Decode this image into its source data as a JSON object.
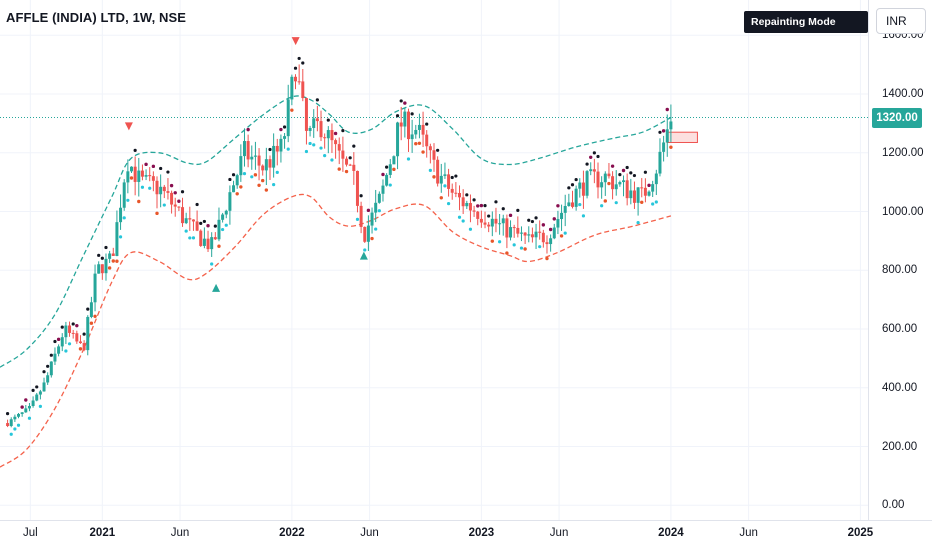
{
  "header": {
    "title": "AFFLE (INDIA) LTD, 1W, NSE",
    "badge": "Repainting Mode Enabled",
    "currency": "INR"
  },
  "price_axis": {
    "ticks": [
      "1600.00",
      "1400.00",
      "1200.00",
      "1000.00",
      "800.00",
      "600.00",
      "400.00",
      "200.00",
      "0.00"
    ],
    "current_price_label": "1320.00"
  },
  "time_axis": {
    "ticks": [
      {
        "label": "Jul",
        "year": false
      },
      {
        "label": "2021",
        "year": true
      },
      {
        "label": "Jun",
        "year": false
      },
      {
        "label": "2022",
        "year": true
      },
      {
        "label": "Jun",
        "year": false
      },
      {
        "label": "2023",
        "year": true
      },
      {
        "label": "Jun",
        "year": false
      },
      {
        "label": "2024",
        "year": true
      },
      {
        "label": "Jun",
        "year": false
      },
      {
        "label": "2025",
        "year": true
      }
    ]
  },
  "colors": {
    "up": "#26a69a",
    "down": "#ef5350",
    "upper_band": "#26a69a",
    "lower_band": "#f4624b",
    "price_line": "#26a69a",
    "dots_top": "#131722",
    "dots_purple": "#880e4f",
    "dots_cyan": "#26c6da",
    "dots_orange": "#e8562a"
  },
  "chart_data": {
    "type": "candlestick",
    "symbol": "AFFLE (INDIA) LTD",
    "interval": "1W",
    "exchange": "NSE",
    "y_range": [
      -50,
      1720
    ],
    "current_price": 1320,
    "x_range": [
      2020.46,
      2025.04
    ],
    "signals": [
      {
        "type": "sell",
        "x": 2021.14,
        "price": 1290
      },
      {
        "type": "sell",
        "x": 2022.02,
        "price": 1580
      },
      {
        "type": "buy",
        "x": 2021.6,
        "price": 740
      },
      {
        "type": "buy",
        "x": 2022.38,
        "price": 850
      }
    ],
    "pending_zone": {
      "x_start": 2023.98,
      "x_end": 2024.14,
      "price_low": 1235,
      "price_high": 1270
    },
    "anchors": [
      {
        "x": 2020.5,
        "price": 280
      },
      {
        "x": 2020.62,
        "price": 330
      },
      {
        "x": 2020.7,
        "price": 420
      },
      {
        "x": 2020.8,
        "price": 600
      },
      {
        "x": 2020.9,
        "price": 530
      },
      {
        "x": 2020.97,
        "price": 800
      },
      {
        "x": 2021.05,
        "price": 840
      },
      {
        "x": 2021.13,
        "price": 1180
      },
      {
        "x": 2021.2,
        "price": 1100
      },
      {
        "x": 2021.3,
        "price": 1080
      },
      {
        "x": 2021.4,
        "price": 1000
      },
      {
        "x": 2021.5,
        "price": 920
      },
      {
        "x": 2021.58,
        "price": 880
      },
      {
        "x": 2021.65,
        "price": 1020
      },
      {
        "x": 2021.75,
        "price": 1200
      },
      {
        "x": 2021.85,
        "price": 1150
      },
      {
        "x": 2021.95,
        "price": 1220
      },
      {
        "x": 2022.02,
        "price": 1500
      },
      {
        "x": 2022.08,
        "price": 1250
      },
      {
        "x": 2022.15,
        "price": 1300
      },
      {
        "x": 2022.25,
        "price": 1180
      },
      {
        "x": 2022.33,
        "price": 1100
      },
      {
        "x": 2022.38,
        "price": 920
      },
      {
        "x": 2022.47,
        "price": 1050
      },
      {
        "x": 2022.57,
        "price": 1300
      },
      {
        "x": 2022.66,
        "price": 1280
      },
      {
        "x": 2022.75,
        "price": 1150
      },
      {
        "x": 2022.86,
        "price": 1050
      },
      {
        "x": 2022.98,
        "price": 1000
      },
      {
        "x": 2023.1,
        "price": 950
      },
      {
        "x": 2023.25,
        "price": 900
      },
      {
        "x": 2023.35,
        "price": 920
      },
      {
        "x": 2023.45,
        "price": 1030
      },
      {
        "x": 2023.55,
        "price": 1100
      },
      {
        "x": 2023.65,
        "price": 1120
      },
      {
        "x": 2023.75,
        "price": 1080
      },
      {
        "x": 2023.85,
        "price": 1050
      },
      {
        "x": 2023.93,
        "price": 1160
      },
      {
        "x": 2023.97,
        "price": 1250
      },
      {
        "x": 2024.0,
        "price": 1320
      }
    ],
    "upper_band": [
      {
        "x": 2020.46,
        "price": 470
      },
      {
        "x": 2020.6,
        "price": 530
      },
      {
        "x": 2020.75,
        "price": 650
      },
      {
        "x": 2020.9,
        "price": 850
      },
      {
        "x": 2021.05,
        "price": 1050
      },
      {
        "x": 2021.15,
        "price": 1180
      },
      {
        "x": 2021.3,
        "price": 1200
      },
      {
        "x": 2021.45,
        "price": 1165
      },
      {
        "x": 2021.55,
        "price": 1170
      },
      {
        "x": 2021.7,
        "price": 1250
      },
      {
        "x": 2021.85,
        "price": 1330
      },
      {
        "x": 2022.0,
        "price": 1390
      },
      {
        "x": 2022.1,
        "price": 1380
      },
      {
        "x": 2022.2,
        "price": 1330
      },
      {
        "x": 2022.3,
        "price": 1270
      },
      {
        "x": 2022.42,
        "price": 1280
      },
      {
        "x": 2022.55,
        "price": 1340
      },
      {
        "x": 2022.7,
        "price": 1360
      },
      {
        "x": 2022.85,
        "price": 1280
      },
      {
        "x": 2023.0,
        "price": 1180
      },
      {
        "x": 2023.15,
        "price": 1160
      },
      {
        "x": 2023.3,
        "price": 1180
      },
      {
        "x": 2023.5,
        "price": 1220
      },
      {
        "x": 2023.7,
        "price": 1250
      },
      {
        "x": 2023.85,
        "price": 1270
      },
      {
        "x": 2024.0,
        "price": 1320
      }
    ],
    "lower_band": [
      {
        "x": 2020.46,
        "price": 130
      },
      {
        "x": 2020.6,
        "price": 190
      },
      {
        "x": 2020.75,
        "price": 330
      },
      {
        "x": 2020.9,
        "price": 530
      },
      {
        "x": 2021.05,
        "price": 760
      },
      {
        "x": 2021.15,
        "price": 860
      },
      {
        "x": 2021.3,
        "price": 830
      },
      {
        "x": 2021.45,
        "price": 770
      },
      {
        "x": 2021.55,
        "price": 790
      },
      {
        "x": 2021.7,
        "price": 880
      },
      {
        "x": 2021.85,
        "price": 990
      },
      {
        "x": 2022.0,
        "price": 1050
      },
      {
        "x": 2022.1,
        "price": 1050
      },
      {
        "x": 2022.2,
        "price": 980
      },
      {
        "x": 2022.3,
        "price": 950
      },
      {
        "x": 2022.42,
        "price": 970
      },
      {
        "x": 2022.55,
        "price": 1010
      },
      {
        "x": 2022.7,
        "price": 1020
      },
      {
        "x": 2022.85,
        "price": 930
      },
      {
        "x": 2023.0,
        "price": 880
      },
      {
        "x": 2023.15,
        "price": 850
      },
      {
        "x": 2023.25,
        "price": 830
      },
      {
        "x": 2023.4,
        "price": 860
      },
      {
        "x": 2023.6,
        "price": 920
      },
      {
        "x": 2023.8,
        "price": 950
      },
      {
        "x": 2024.0,
        "price": 985
      }
    ]
  }
}
